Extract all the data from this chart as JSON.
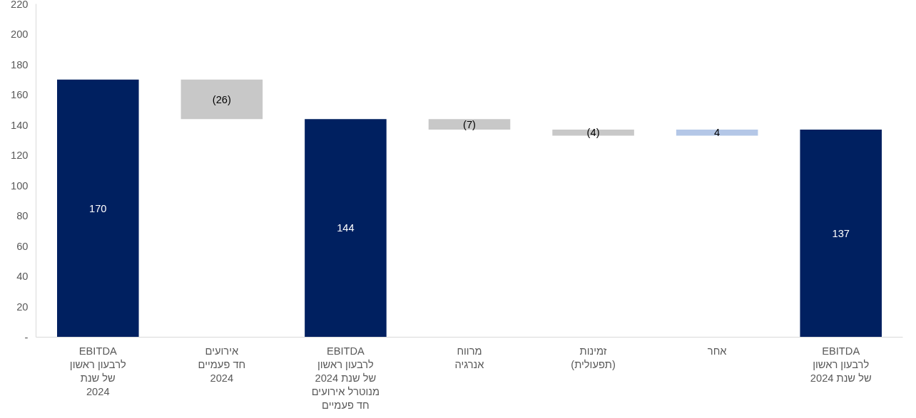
{
  "chart_data": {
    "type": "bar",
    "categories": [
      "EBITDA\nלרבעון ראשון\nשל שנת\n2024",
      "אירועים\nחד פעמיים\n2024",
      "EBITDA\nלרבעון ראשון\nשל שנת 2024\nמנוטרל אירועים\nחד פעמיים",
      "מרווח\nאנרגיה",
      "זמינות\n(תפעולית)",
      "אחר",
      "EBITDA\nלרבעון ראשון\nשל שנת 2024"
    ],
    "values": [
      170,
      -26,
      144,
      -7,
      -4,
      4,
      137
    ],
    "base": [
      0,
      170,
      0,
      144,
      137,
      133,
      0
    ],
    "colors": [
      "#002060",
      "#c8c8c8",
      "#002060",
      "#c8c8c8",
      "#c8c8c8",
      "#b4c7e7",
      "#002060"
    ],
    "value_labels": [
      "170",
      "(26)",
      "144",
      "(7)",
      "(4)",
      "4",
      "137"
    ],
    "ylim": [
      0,
      220
    ],
    "yticks": [
      {
        "value": 0,
        "label": "-"
      },
      20,
      40,
      60,
      80,
      100,
      120,
      140,
      160,
      180,
      200,
      220
    ],
    "grid": false
  }
}
